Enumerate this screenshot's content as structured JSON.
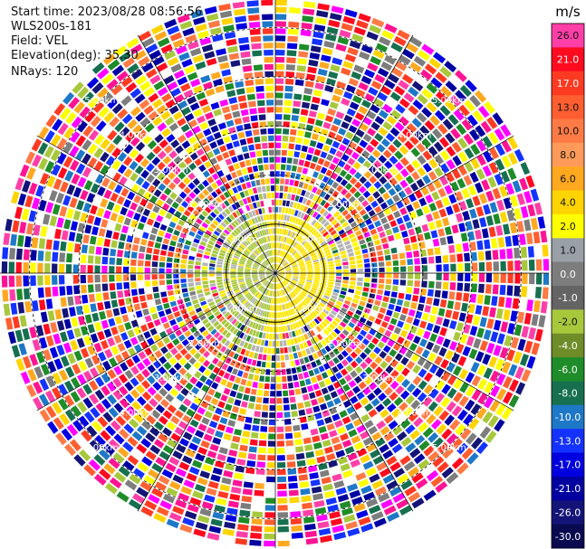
{
  "info": {
    "start_time": "Start time: 2023/08/28 08:56:56",
    "instrument": "WLS200s-181",
    "field": "Field: VEL",
    "elevation": "Elevation(deg): 35.30",
    "nrays": "NRays: 120"
  },
  "colorbar": {
    "unit": "m/s",
    "levels": [
      {
        "label": "26.0",
        "color": "#ff3fa8"
      },
      {
        "label": "21.0",
        "color": "#ff0a1f"
      },
      {
        "label": "17.0",
        "color": "#ff3a22"
      },
      {
        "label": "13.0",
        "color": "#ff5e30"
      },
      {
        "label": "10.0",
        "color": "#ff7a45"
      },
      {
        "label": "8.0",
        "color": "#ff9a5a"
      },
      {
        "label": "6.0",
        "color": "#ffa820"
      },
      {
        "label": "4.0",
        "color": "#ffd400"
      },
      {
        "label": "2.0",
        "color": "#ffff00"
      },
      {
        "label": "1.0",
        "color": "#9aa0a8"
      },
      {
        "label": "0.0",
        "color": "#7d7d7d"
      },
      {
        "label": "-1.0",
        "color": "#646464"
      },
      {
        "label": "-2.0",
        "color": "#a8c83c"
      },
      {
        "label": "-4.0",
        "color": "#6e8c28"
      },
      {
        "label": "-6.0",
        "color": "#1e8c28"
      },
      {
        "label": "-8.0",
        "color": "#167050"
      },
      {
        "label": "-10.0",
        "color": "#1e78c8"
      },
      {
        "label": "-13.0",
        "color": "#1432ff"
      },
      {
        "label": "-17.0",
        "color": "#0000e0"
      },
      {
        "label": "-21.0",
        "color": "#0000a0"
      },
      {
        "label": "-26.0",
        "color": "#141478"
      },
      {
        "label": "-30.0",
        "color": "#0a0a50"
      }
    ]
  },
  "chart_data": {
    "type": "heatmap",
    "projection": "polar (PPI lidar scan)",
    "field": "VEL",
    "units": "m/s",
    "n_rays": 120,
    "elevation_deg": 35.3,
    "range_rings_km": [
      1.0,
      2.0,
      3.0,
      4.0,
      5.0
    ],
    "ring_labels": [
      "1.00km",
      "2.00km",
      "3.00km",
      "4.00km",
      "5.00km"
    ],
    "color_range": [
      -30.0,
      26.0
    ],
    "description_of_values": {
      "near_range_0_to_1km": "mostly 2.0 to 4.0 m/s (yellow) on the east half, -2.0 to -4.0 m/s (olive) on the west/south",
      "beyond_1.5km": "noisy, values spread across the full color range"
    }
  }
}
